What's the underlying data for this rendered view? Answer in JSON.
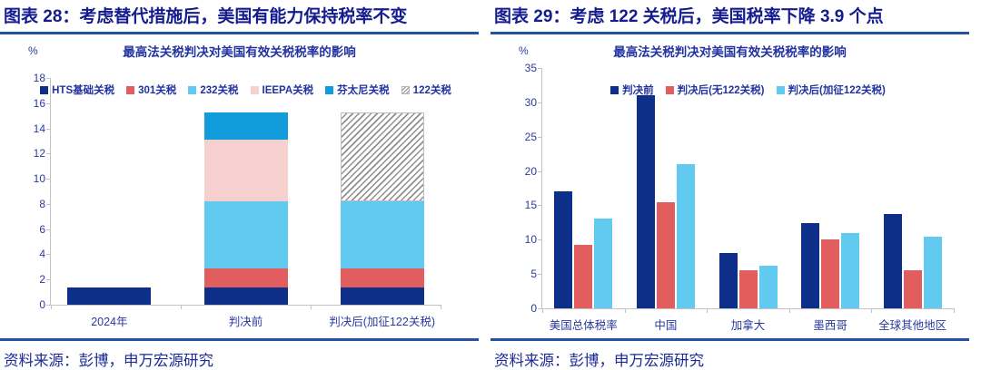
{
  "figures": [
    {
      "caption": "图表 28：考虑替代措施后，美国有能力保持税率不变",
      "source": "资料来源：彭博，申万宏源研究"
    },
    {
      "caption": "图表 29：考虑 122 关税后，美国税率下降 3.9 个点",
      "source": "资料来源：彭博，申万宏源研究"
    }
  ],
  "colors": {
    "caption_blue": "#141c8e",
    "separator_blue": "#2353a4",
    "axis_text_blue": "#2b3a9e",
    "navy": "#0d2e89",
    "coral_red": "#e25d5d",
    "sky_blue": "#62caf0",
    "pink": "#f6cfcf",
    "bright_blue": "#129cdc"
  },
  "chart_data": [
    {
      "type": "bar",
      "stacked": true,
      "title": "最高法关税判决对美国有效关税税率的影响",
      "ylabel": "%",
      "xlabel": "",
      "ylim": [
        0,
        18
      ],
      "ytick_step": 2,
      "yticks": [
        0,
        2,
        4,
        6,
        8,
        10,
        12,
        14,
        16,
        18
      ],
      "grid": false,
      "legend_position": "top",
      "categories": [
        "2024年",
        "判决前",
        "判决后(加征122关税)"
      ],
      "series": [
        {
          "name": "HTS基础关税",
          "color": "#0d2e89",
          "values": [
            1.4,
            1.4,
            1.4
          ]
        },
        {
          "name": "301关税",
          "color": "#e25d5d",
          "values": [
            0,
            1.5,
            1.5
          ]
        },
        {
          "name": "232关税",
          "color": "#62caf0",
          "values": [
            0,
            5.3,
            5.3
          ]
        },
        {
          "name": "IEEPA关税",
          "color": "#f6cfcf",
          "values": [
            0,
            4.9,
            0
          ]
        },
        {
          "name": "芬太尼关税",
          "color": "#129cdc",
          "values": [
            0,
            2.2,
            0
          ]
        },
        {
          "name": "122关税",
          "color": "hatch",
          "values": [
            0,
            0,
            7.1
          ]
        }
      ]
    },
    {
      "type": "bar",
      "stacked": false,
      "title": "最高法关税判决对美国有效关税税率的影响",
      "ylabel": "%",
      "xlabel": "",
      "ylim": [
        0,
        35
      ],
      "ytick_step": 5,
      "yticks": [
        0,
        5,
        10,
        15,
        20,
        25,
        30,
        35
      ],
      "grid": false,
      "legend_position": "top",
      "categories": [
        "美国总体税率",
        "中国",
        "加拿大",
        "墨西哥",
        "全球其他地区"
      ],
      "series": [
        {
          "name": "判决前",
          "color": "#0d2e89",
          "values": [
            17.0,
            31.0,
            8.0,
            12.4,
            13.8
          ]
        },
        {
          "name": "判决后(无122关税)",
          "color": "#e25d5d",
          "values": [
            9.2,
            15.4,
            5.6,
            10.0,
            5.6
          ]
        },
        {
          "name": "判决后(加征122关税)",
          "color": "#62caf0",
          "values": [
            13.1,
            21.0,
            6.2,
            10.9,
            10.4
          ]
        }
      ]
    }
  ]
}
